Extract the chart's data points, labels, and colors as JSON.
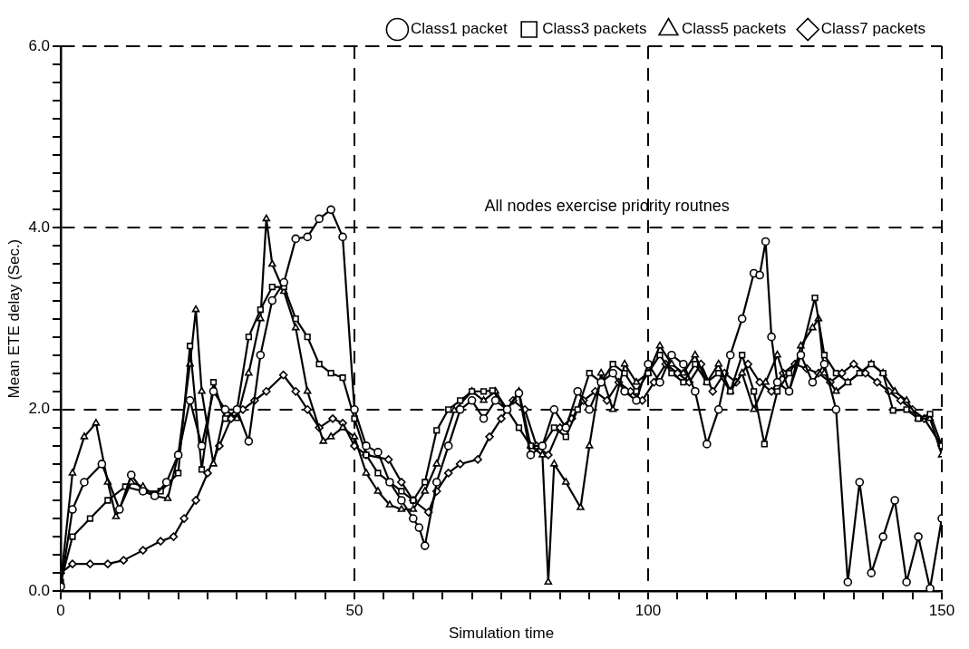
{
  "chart_data": {
    "type": "line",
    "xlabel": "Simulation time",
    "ylabel": "Mean ETE delay (Sec.)",
    "xlim": [
      0,
      150
    ],
    "ylim": [
      0,
      6
    ],
    "xticks": [
      0,
      {
        "value": 5,
        "label": null
      },
      {
        "value": 10,
        "label": null
      },
      {
        "value": 15,
        "label": null
      },
      {
        "value": 20,
        "label": null
      },
      {
        "value": 25,
        "label": null
      },
      {
        "value": 30,
        "label": null
      },
      {
        "value": 35,
        "label": null
      },
      {
        "value": 40,
        "label": null
      },
      {
        "value": 45,
        "label": null
      },
      50,
      {
        "value": 55,
        "label": null
      },
      {
        "value": 60,
        "label": null
      },
      {
        "value": 65,
        "label": null
      },
      {
        "value": 70,
        "label": null
      },
      {
        "value": 75,
        "label": null
      },
      {
        "value": 80,
        "label": null
      },
      {
        "value": 85,
        "label": null
      },
      {
        "value": 90,
        "label": null
      },
      {
        "value": 95,
        "label": null
      },
      100,
      {
        "value": 105,
        "label": null
      },
      {
        "value": 110,
        "label": null
      },
      {
        "value": 115,
        "label": null
      },
      {
        "value": 120,
        "label": null
      },
      {
        "value": 125,
        "label": null
      },
      {
        "value": 130,
        "label": null
      },
      {
        "value": 135,
        "label": null
      },
      {
        "value": 140,
        "label": null
      },
      {
        "value": 145,
        "label": null
      },
      150
    ],
    "yticks": [
      {
        "value": 0,
        "label": "0.0"
      },
      {
        "value": 0.2,
        "label": null
      },
      {
        "value": 0.4,
        "label": null
      },
      {
        "value": 0.6,
        "label": null
      },
      {
        "value": 0.8,
        "label": null
      },
      {
        "value": 1,
        "label": null
      },
      {
        "value": 1.2,
        "label": null
      },
      {
        "value": 1.4,
        "label": null
      },
      {
        "value": 1.6,
        "label": null
      },
      {
        "value": 1.8,
        "label": null
      },
      {
        "value": 2,
        "label": "2.0"
      },
      {
        "value": 2.2,
        "label": null
      },
      {
        "value": 2.4,
        "label": null
      },
      {
        "value": 2.6,
        "label": null
      },
      {
        "value": 2.8,
        "label": null
      },
      {
        "value": 3,
        "label": null
      },
      {
        "value": 3.2,
        "label": null
      },
      {
        "value": 3.4,
        "label": null
      },
      {
        "value": 3.6,
        "label": null
      },
      {
        "value": 3.8,
        "label": null
      },
      {
        "value": 4,
        "label": "4.0"
      },
      {
        "value": 4.2,
        "label": null
      },
      {
        "value": 4.4,
        "label": null
      },
      {
        "value": 4.6,
        "label": null
      },
      {
        "value": 4.8,
        "label": null
      },
      {
        "value": 5,
        "label": null
      },
      {
        "value": 5.2,
        "label": null
      },
      {
        "value": 5.4,
        "label": null
      },
      {
        "value": 5.6,
        "label": null
      },
      {
        "value": 5.8,
        "label": null
      },
      {
        "value": 6,
        "label": "6.0"
      }
    ],
    "grid": true,
    "legend": "top right",
    "line_style": "solid",
    "annotations": [
      "All nodes exercise priority routnes"
    ],
    "series": [
      {
        "name": "Class1 packet",
        "color": "#000000",
        "marker": "circle",
        "x": [
          0,
          2,
          4,
          7,
          10,
          12,
          14,
          16,
          18,
          20,
          22,
          24,
          26,
          28,
          30,
          32,
          34,
          36,
          38,
          40,
          42,
          44,
          46,
          48,
          50,
          52,
          54,
          56,
          58,
          60,
          61,
          62,
          64,
          66,
          68,
          70,
          72,
          74,
          76,
          78,
          80,
          82,
          84,
          86,
          88,
          90,
          92,
          94,
          96,
          98,
          100,
          102,
          104,
          106,
          108,
          110,
          112,
          114,
          116,
          118,
          119,
          120,
          121,
          122,
          124,
          126,
          128,
          130,
          132,
          134,
          136,
          138,
          140,
          142,
          144,
          146,
          148,
          150
        ],
        "values": [
          0.05,
          0.9,
          1.2,
          1.4,
          0.9,
          1.28,
          1.1,
          1.05,
          1.2,
          1.5,
          2.1,
          1.6,
          2.2,
          2.0,
          2.0,
          1.65,
          2.6,
          3.2,
          3.4,
          3.88,
          3.9,
          4.1,
          4.2,
          3.9,
          2.0,
          1.6,
          1.53,
          1.2,
          1.0,
          0.8,
          0.7,
          0.5,
          1.2,
          1.6,
          2.0,
          2.1,
          1.9,
          2.1,
          2.0,
          2.18,
          1.5,
          1.6,
          2.0,
          1.8,
          2.2,
          2.0,
          2.3,
          2.4,
          2.2,
          2.1,
          2.5,
          2.3,
          2.6,
          2.5,
          2.2,
          1.62,
          2.0,
          2.6,
          3.0,
          3.5,
          3.48,
          3.85,
          2.8,
          2.3,
          2.2,
          2.6,
          2.3,
          2.5,
          2.0,
          0.1,
          1.2,
          0.2,
          0.6,
          1.0,
          0.1,
          0.6,
          0.03,
          0.8
        ]
      },
      {
        "name": "Class3 packets",
        "color": "#000000",
        "marker": "square",
        "x": [
          0,
          2,
          5,
          8,
          11,
          14,
          17,
          20,
          22,
          24,
          26,
          28,
          30,
          32,
          34,
          36,
          38,
          40,
          42,
          44,
          46,
          48,
          50,
          52,
          54,
          56,
          58,
          60,
          62,
          64,
          66,
          68,
          70,
          72,
          73.5,
          76,
          78,
          80,
          82,
          84,
          86,
          88,
          90,
          92,
          94,
          96,
          98,
          100,
          102,
          104,
          106,
          108,
          110,
          112,
          114,
          116,
          118,
          119.8,
          122,
          124,
          126,
          128.4,
          130,
          132,
          134,
          136,
          138,
          140,
          141.7,
          144,
          146,
          148,
          150
        ],
        "values": [
          0.1,
          0.6,
          0.8,
          1.0,
          1.15,
          1.1,
          1.1,
          1.3,
          2.7,
          1.34,
          2.3,
          1.9,
          2.0,
          2.8,
          3.1,
          3.35,
          3.35,
          3.0,
          2.8,
          2.5,
          2.4,
          2.35,
          1.9,
          1.5,
          1.3,
          1.2,
          1.1,
          1.0,
          1.2,
          1.77,
          2.0,
          2.1,
          2.2,
          2.2,
          2.21,
          2.0,
          1.8,
          1.6,
          1.6,
          1.8,
          1.7,
          2.0,
          2.4,
          2.3,
          2.5,
          2.4,
          2.2,
          2.4,
          2.6,
          2.4,
          2.3,
          2.5,
          2.3,
          2.4,
          2.2,
          2.6,
          2.2,
          1.62,
          2.2,
          2.4,
          2.6,
          3.23,
          2.6,
          2.4,
          2.3,
          2.4,
          2.5,
          2.4,
          1.99,
          2.0,
          1.9,
          1.95,
          1.6
        ]
      },
      {
        "name": "Class5 packets",
        "color": "#000000",
        "marker": "triangle",
        "x": [
          0,
          2,
          4,
          6,
          8,
          9.4,
          12,
          14,
          16,
          18.2,
          20,
          22,
          23,
          24,
          26,
          28,
          30,
          32,
          34,
          35,
          36,
          38,
          40,
          42,
          44.7,
          46,
          48,
          50,
          52,
          54,
          56,
          58,
          60,
          62,
          64,
          67,
          70,
          72,
          74,
          76,
          78,
          80,
          82,
          83,
          84,
          86,
          88.5,
          90,
          92,
          94,
          96,
          98,
          100,
          102,
          104,
          106,
          108,
          110,
          112,
          114,
          116,
          118,
          120,
          122,
          124,
          126,
          128,
          129,
          130,
          132,
          134,
          136,
          138,
          140,
          142,
          144,
          146,
          148,
          150
        ],
        "values": [
          0.1,
          1.3,
          1.7,
          1.85,
          1.2,
          0.82,
          1.2,
          1.15,
          1.05,
          1.02,
          1.5,
          2.5,
          3.1,
          2.2,
          1.4,
          2.0,
          1.9,
          2.4,
          3.0,
          4.1,
          3.6,
          3.3,
          2.9,
          2.2,
          1.65,
          1.7,
          1.8,
          1.7,
          1.3,
          1.1,
          0.95,
          0.9,
          0.9,
          1.1,
          1.4,
          1.99,
          2.2,
          2.1,
          2.2,
          2.0,
          2.2,
          1.6,
          1.5,
          0.1,
          1.4,
          1.2,
          0.92,
          1.6,
          2.4,
          2.0,
          2.5,
          2.3,
          2.4,
          2.7,
          2.5,
          2.4,
          2.6,
          2.3,
          2.5,
          2.2,
          2.4,
          2.0,
          2.3,
          2.6,
          2.2,
          2.7,
          2.9,
          3.0,
          2.4,
          2.2,
          2.3,
          2.4,
          2.5,
          2.4,
          2.2,
          2.1,
          1.9,
          1.9,
          1.5
        ]
      },
      {
        "name": "Class7 packets",
        "color": "#000000",
        "marker": "diamond",
        "x": [
          0,
          2,
          5,
          8,
          10.7,
          14,
          17,
          19.2,
          21,
          23,
          25,
          27,
          29,
          31,
          33,
          35,
          37.9,
          40,
          42,
          44,
          46.3,
          48,
          50,
          52,
          55.8,
          58,
          60,
          62.6,
          64,
          66,
          68,
          71,
          73,
          75,
          77,
          79,
          81,
          83,
          85,
          87,
          89,
          91,
          93,
          95,
          97,
          99,
          101,
          103,
          105,
          107,
          109,
          111,
          113,
          115,
          117,
          119,
          121,
          123,
          125,
          127,
          129,
          131,
          133,
          135,
          137,
          139,
          141,
          143,
          145,
          147,
          150
        ],
        "values": [
          0.2,
          0.3,
          0.3,
          0.3,
          0.34,
          0.45,
          0.55,
          0.6,
          0.8,
          1.0,
          1.3,
          1.6,
          1.9,
          2.0,
          2.1,
          2.2,
          2.38,
          2.2,
          2.0,
          1.8,
          1.9,
          1.85,
          1.6,
          1.5,
          1.45,
          1.2,
          1.0,
          0.87,
          1.1,
          1.3,
          1.4,
          1.45,
          1.7,
          1.9,
          2.1,
          2.0,
          1.6,
          1.5,
          1.8,
          1.9,
          2.1,
          2.2,
          2.1,
          2.3,
          2.2,
          2.1,
          2.3,
          2.5,
          2.4,
          2.3,
          2.5,
          2.2,
          2.4,
          2.3,
          2.5,
          2.3,
          2.2,
          2.4,
          2.5,
          2.45,
          2.4,
          2.3,
          2.4,
          2.5,
          2.4,
          2.3,
          2.2,
          2.1,
          2.0,
          1.9,
          1.6
        ]
      }
    ]
  }
}
